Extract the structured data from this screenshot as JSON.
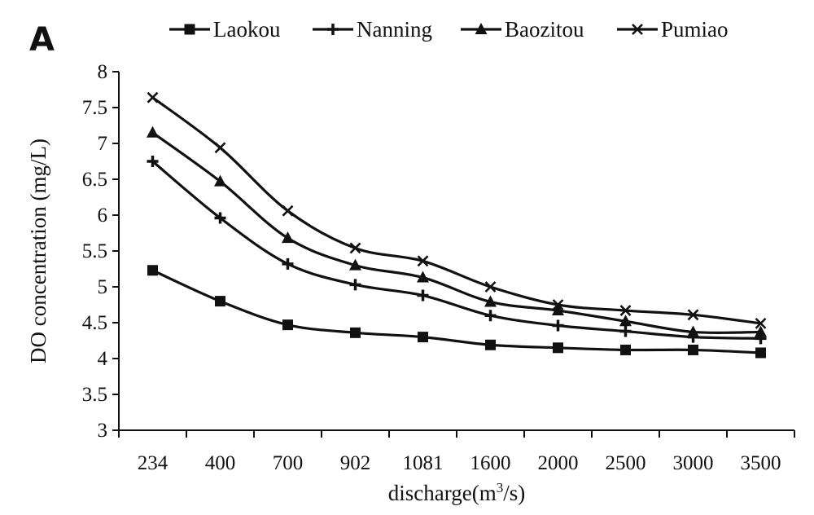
{
  "panel_label": "A",
  "chart_data": {
    "type": "line",
    "categories": [
      "234",
      "400",
      "700",
      "902",
      "1081",
      "1600",
      "2000",
      "2500",
      "3000",
      "3500"
    ],
    "series": [
      {
        "name": "Laokou",
        "marker": "square",
        "values": [
          5.23,
          4.8,
          4.47,
          4.36,
          4.3,
          4.19,
          4.15,
          4.12,
          4.12,
          4.08
        ]
      },
      {
        "name": "Nanning",
        "marker": "plus",
        "values": [
          6.75,
          5.96,
          5.32,
          5.03,
          4.88,
          4.6,
          4.46,
          4.38,
          4.3,
          4.28
        ]
      },
      {
        "name": "Baozitou",
        "marker": "triangle",
        "values": [
          7.15,
          6.47,
          5.68,
          5.3,
          5.13,
          4.79,
          4.67,
          4.52,
          4.37,
          4.37
        ]
      },
      {
        "name": "Pumiao",
        "marker": "x",
        "values": [
          7.64,
          6.94,
          6.06,
          5.54,
          5.36,
          5.0,
          4.75,
          4.67,
          4.61,
          4.49
        ]
      }
    ],
    "title": "",
    "xlabel_base": "discharge(m",
    "xlabel_sup": "3",
    "xlabel_tail": "/s)",
    "ylabel": "DO concentration (mg/L)",
    "ylim": [
      3,
      8
    ],
    "yticks": [
      "3",
      "3.5",
      "4",
      "4.5",
      "5",
      "5.5",
      "6",
      "6.5",
      "7",
      "7.5",
      "8"
    ],
    "grid": false,
    "legend_position": "top"
  }
}
